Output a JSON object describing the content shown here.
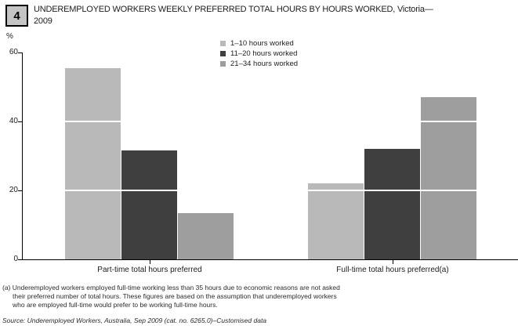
{
  "header": {
    "figure_number": "4",
    "title_line1": "UNDEREMPLOYED WORKERS WEEKLY PREFERRED TOTAL HOURS BY HOURS WORKED, Victoria—",
    "title_line2": "2009"
  },
  "chart_data": {
    "type": "bar",
    "title": "UNDEREMPLOYED WORKERS WEEKLY PREFERRED TOTAL HOURS BY HOURS WORKED, Victoria—2009",
    "ylabel": "%",
    "ylim": [
      0,
      60
    ],
    "yticks": [
      0,
      20,
      40,
      60
    ],
    "categories": [
      "Part-time total hours preferred",
      "Full-time total hours preferred(a)"
    ],
    "series": [
      {
        "name": "1–10 hours worked",
        "color": "#b9b9b9",
        "values": [
          55.5,
          22
        ]
      },
      {
        "name": "11–20 hours worked",
        "color": "#3f3f3f",
        "values": [
          31.5,
          32
        ]
      },
      {
        "name": "21–34 hours worked",
        "color": "#9e9e9e",
        "values": [
          13.5,
          47
        ]
      }
    ],
    "legend_position": "top-center",
    "grid": "white horizontal lines at 20 and 40 drawn across bars",
    "axis_color": "#000000"
  },
  "footnote": {
    "line1": "(a) Underemployed workers employed full-time working less than 35 hours due to economic reasons are not asked",
    "line2": "their preferred number of total hours. These figures are based on the assumption that underemployed workers",
    "line3": "who are employed full-time would prefer to be working full-time hours."
  },
  "source": "Source: Underemployed Workers, Australia, Sep 2009 (cat. no. 6265.0)–Customised data"
}
